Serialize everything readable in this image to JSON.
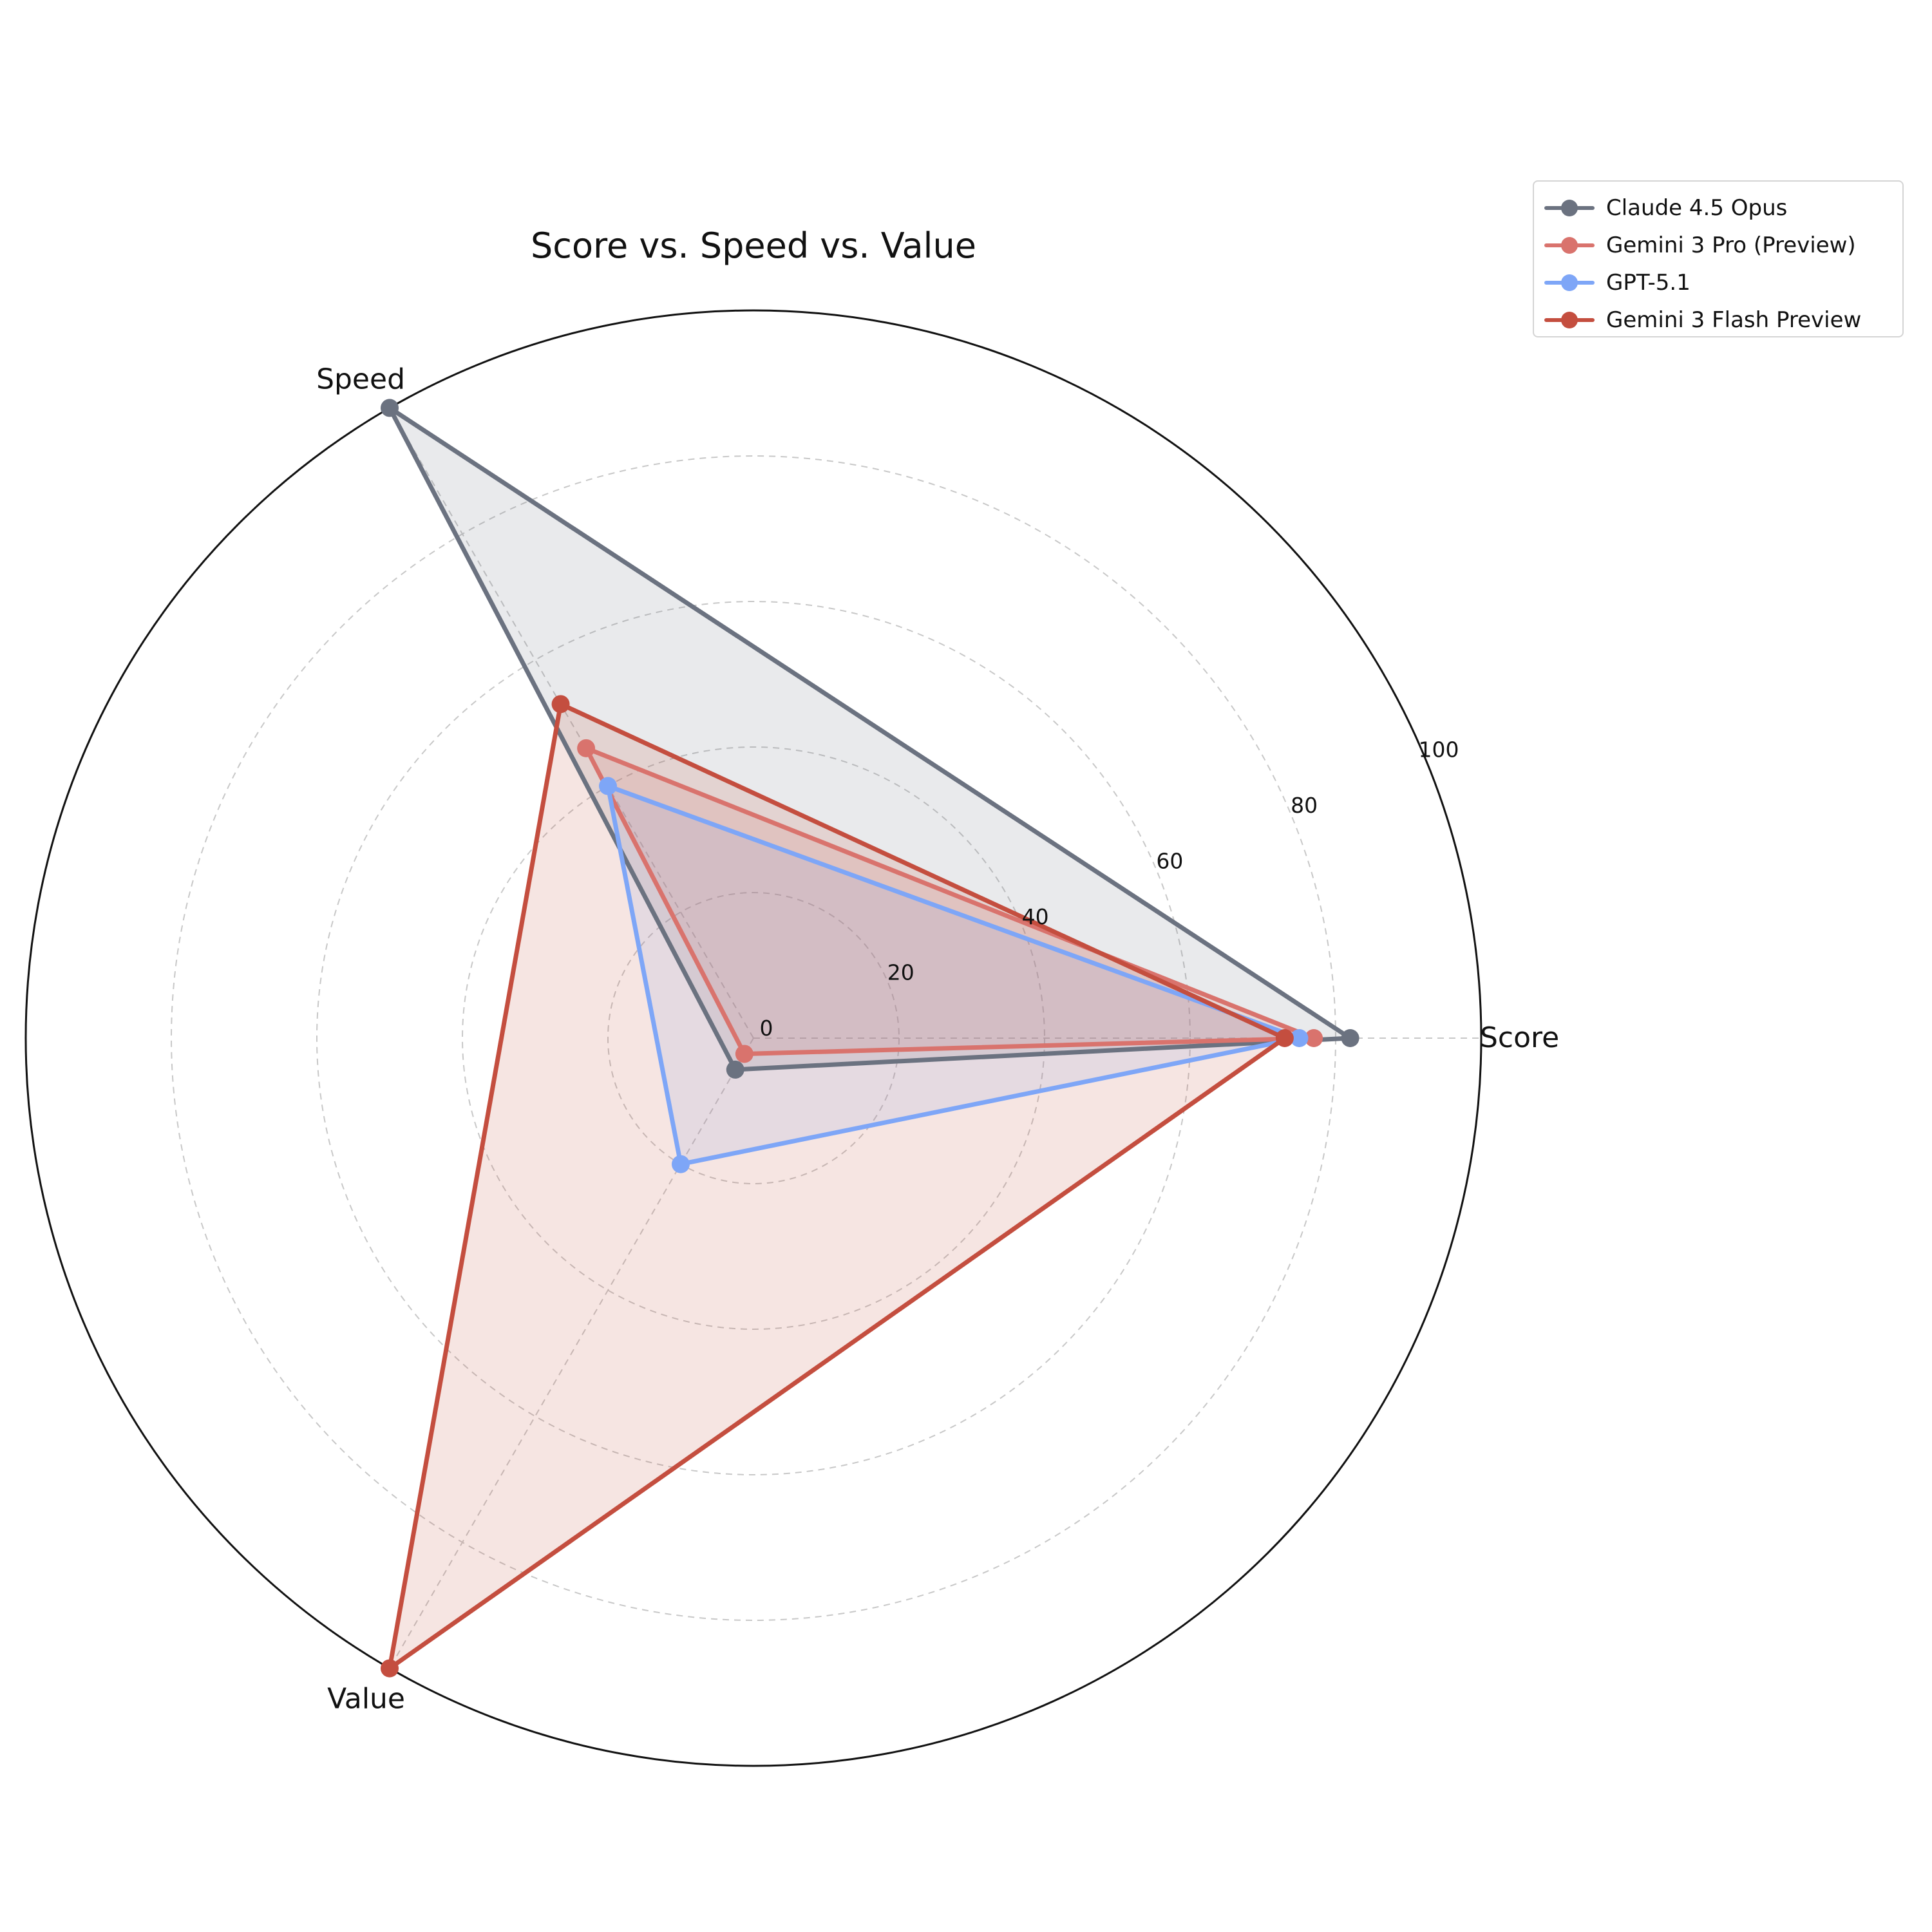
{
  "chart_data": {
    "type": "radar",
    "title": "Score vs. Speed vs. Value",
    "axes": [
      "Score",
      "Speed",
      "Value"
    ],
    "radial_ticks": [
      "0",
      "20",
      "40",
      "60",
      "80",
      "100"
    ],
    "radial_range": [
      0,
      100
    ],
    "grid": true,
    "legend_position": "top-right",
    "series": [
      {
        "name": "Claude 4.5 Opus",
        "color": "#6b7280",
        "values": [
          82,
          100,
          5
        ]
      },
      {
        "name": "Gemini 3 Pro (Preview)",
        "color": "#d9736d",
        "values": [
          77,
          46,
          2.5
        ]
      },
      {
        "name": "GPT-5.1",
        "color": "#7ea6f7",
        "values": [
          75,
          40,
          20
        ]
      },
      {
        "name": "Gemini 3 Flash Preview",
        "color": "#c44e3f",
        "values": [
          73,
          53,
          100
        ]
      }
    ]
  }
}
